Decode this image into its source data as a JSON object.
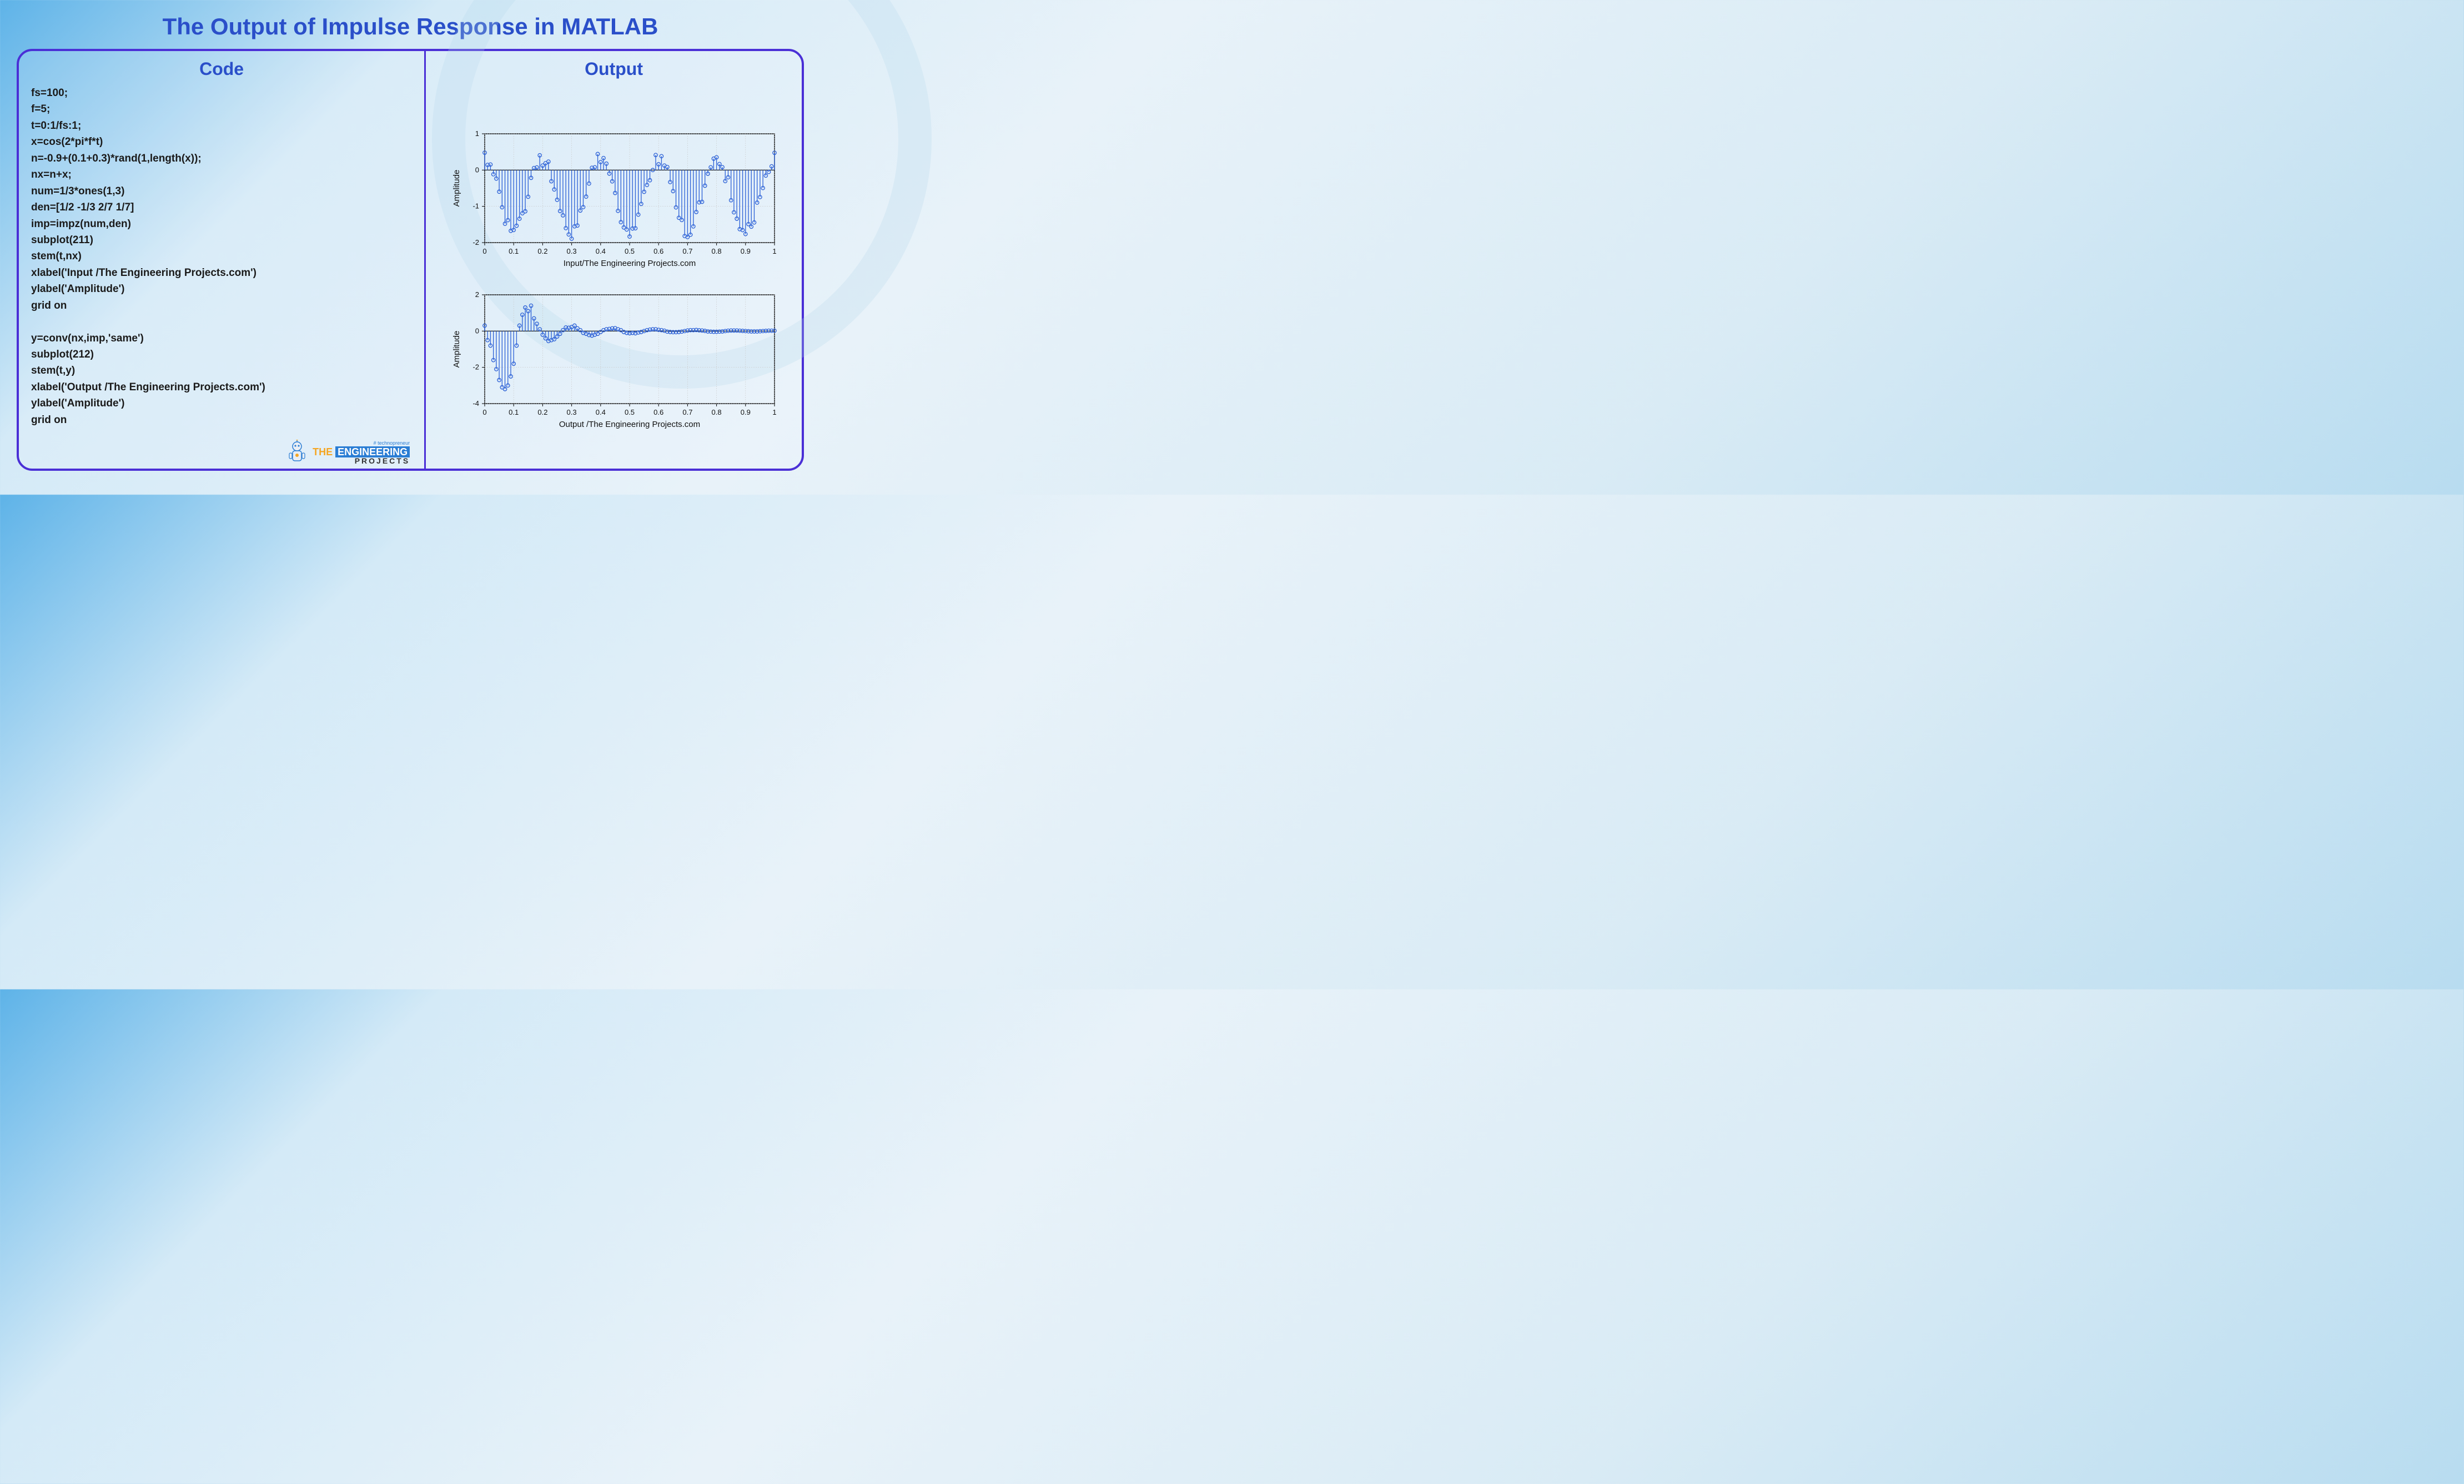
{
  "title": "The Output of Impulse Response in MATLAB",
  "left": {
    "heading": "Code",
    "code": "fs=100;\nf=5;\nt=0:1/fs:1;\nx=cos(2*pi*f*t)\nn=-0.9+(0.1+0.3)*rand(1,length(x));\nnx=n+x;\nnum=1/3*ones(1,3)\nden=[1/2 -1/3 2/7 1/7]\nimp=impz(num,den)\nsubplot(211)\nstem(t,nx)\nxlabel('Input /The Engineering Projects.com')\nylabel('Amplitude')\ngrid on\n\ny=conv(nx,imp,'same')\nsubplot(212)\nstem(t,y)\nxlabel('Output /The Engineering Projects.com')\nylabel('Amplitude')\ngrid on"
  },
  "right": {
    "heading": "Output"
  },
  "logo": {
    "tag": "# technopreneur",
    "the": "THE ",
    "eng": "ENGINEERING",
    "proj": "PROJECTS"
  },
  "chart1": {
    "type": "stem",
    "xlabel": "Input/The Engineering Projects.com",
    "ylabel": "Amplitude",
    "xlim": [
      0,
      1
    ],
    "ylim": [
      -2,
      1
    ],
    "xticks": [
      0,
      0.1,
      0.2,
      0.3,
      0.4,
      0.5,
      0.6,
      0.7,
      0.8,
      0.9,
      1
    ],
    "yticks": [
      -2,
      -1,
      0,
      1
    ],
    "stem_color": "#2a5fd6",
    "marker_color": "#2a5fd6",
    "marker_fill": "none",
    "grid_color": "#c9c9c9",
    "axis_color": "#000000",
    "label_fontsize": 15,
    "tick_fontsize": 13,
    "fs": 100,
    "freq": 5,
    "noise_offset": -0.9,
    "noise_scale": 0.4,
    "noise_seed": [
      0.95,
      0.23,
      0.61,
      0.49,
      0.89,
      0.76,
      0.46,
      0.02,
      0.82,
      0.44,
      0.62,
      0.79,
      0.92,
      0.74,
      0.18,
      0.41,
      0.94,
      0.92,
      0.41,
      0.89,
      0.06,
      0.35,
      0.81,
      0.01,
      0.14,
      0.2,
      0.2,
      0.6,
      0.27,
      0.19,
      0.02,
      0.75,
      0.45,
      0.93,
      0.47,
      0.42,
      0.55,
      0.94,
      0.42,
      0.98,
      0.3,
      0.7,
      0.67,
      0.54,
      0.7,
      0.67,
      0.21,
      0.13,
      0.32,
      0.53,
      0.17,
      0.6,
      0.26,
      0.65,
      0.69,
      0.75,
      0.45,
      0.08,
      0.23,
      0.91,
      0.15,
      0.83,
      0.54,
      0.99,
      0.65,
      0.8,
      0.45,
      0.43,
      0.83,
      0.08,
      0.13,
      0.17,
      0.39,
      0.83,
      0.8,
      0.06,
      0.4,
      0.53,
      0.42,
      0.66,
      0.63,
      0.29,
      0.43,
      0.02,
      0.98,
      0.17,
      0.11,
      0.37,
      0.2,
      0.49,
      0.34,
      0.9,
      0.37,
      0.11,
      0.78,
      0.39,
      0.24,
      0.4,
      0.1,
      0.13,
      0.94
    ]
  },
  "chart2": {
    "type": "stem",
    "xlabel": "Output /The Engineering Projects.com",
    "ylabel": "Amplitude",
    "xlim": [
      0,
      1
    ],
    "ylim": [
      -4,
      2
    ],
    "xticks": [
      0,
      0.1,
      0.2,
      0.3,
      0.4,
      0.5,
      0.6,
      0.7,
      0.8,
      0.9,
      1
    ],
    "yticks": [
      -4,
      -2,
      0,
      2
    ],
    "stem_color": "#2a5fd6",
    "marker_color": "#2a5fd6",
    "marker_fill": "none",
    "grid_color": "#c9c9c9",
    "axis_color": "#000000",
    "label_fontsize": 15,
    "tick_fontsize": 13,
    "values": [
      0.3,
      -0.5,
      -0.8,
      -1.6,
      -2.1,
      -2.7,
      -3.1,
      -3.2,
      -3.0,
      -2.5,
      -1.8,
      -0.8,
      0.3,
      0.9,
      1.3,
      1.1,
      1.4,
      0.7,
      0.4,
      0.1,
      -0.2,
      -0.4,
      -0.55,
      -0.5,
      -0.45,
      -0.3,
      -0.15,
      0.05,
      0.2,
      0.18,
      0.22,
      0.3,
      0.15,
      0.05,
      -0.1,
      -0.15,
      -0.22,
      -0.25,
      -0.2,
      -0.15,
      -0.05,
      0.05,
      0.1,
      0.12,
      0.15,
      0.16,
      0.1,
      0.05,
      -0.05,
      -0.1,
      -0.12,
      -0.1,
      -0.12,
      -0.08,
      -0.05,
      0.0,
      0.05,
      0.08,
      0.1,
      0.1,
      0.07,
      0.05,
      0.02,
      -0.03,
      -0.05,
      -0.06,
      -0.06,
      -0.05,
      -0.03,
      0.0,
      0.03,
      0.05,
      0.05,
      0.06,
      0.04,
      0.03,
      0.01,
      -0.02,
      -0.03,
      -0.04,
      -0.04,
      -0.03,
      -0.02,
      0.0,
      0.02,
      0.03,
      0.03,
      0.03,
      0.02,
      0.01,
      0.0,
      -0.01,
      -0.02,
      -0.02,
      -0.02,
      -0.01,
      0.0,
      0.01,
      0.02,
      0.02,
      0.02
    ]
  }
}
